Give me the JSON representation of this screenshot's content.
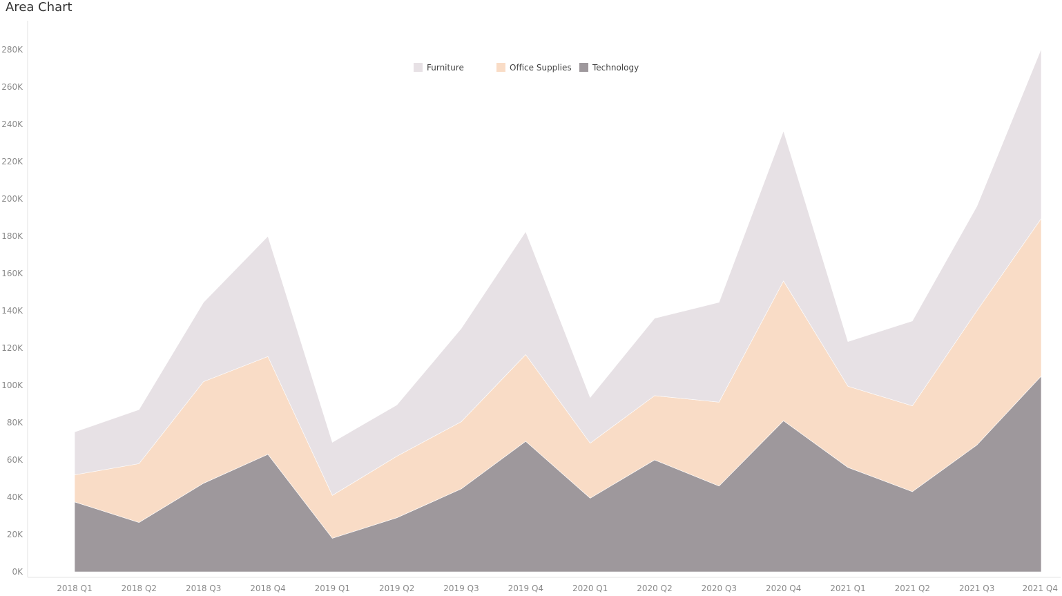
{
  "title": "Area Chart",
  "chart_data": {
    "type": "area",
    "stacked": true,
    "title": "Area Chart",
    "xlabel": "",
    "ylabel": "",
    "ylim": [
      0,
      280000
    ],
    "yticks": [
      0,
      20000,
      40000,
      60000,
      80000,
      100000,
      120000,
      140000,
      160000,
      180000,
      200000,
      220000,
      240000,
      260000,
      280000
    ],
    "ytick_labels": [
      "0K",
      "20K",
      "40K",
      "60K",
      "80K",
      "100K",
      "120K",
      "140K",
      "160K",
      "180K",
      "200K",
      "220K",
      "240K",
      "260K",
      "280K"
    ],
    "categories": [
      "2018 Q1",
      "2018 Q2",
      "2018 Q3",
      "2018 Q4",
      "2019 Q1",
      "2019 Q2",
      "2019 Q3",
      "2019 Q4",
      "2020 Q1",
      "2020 Q2",
      "2020 Q3",
      "2020 Q4",
      "2021 Q1",
      "2021 Q2",
      "2021 Q3",
      "2021 Q4"
    ],
    "legend_position": "top-center",
    "grid": false,
    "series": [
      {
        "name": "Technology",
        "color": "#9e989c",
        "values": [
          37500,
          26500,
          47500,
          63000,
          18000,
          29000,
          44500,
          70000,
          39500,
          60000,
          46000,
          81000,
          56000,
          43000,
          68000,
          105000
        ]
      },
      {
        "name": "Office Supplies",
        "color": "#f9dcc6",
        "values": [
          14500,
          31500,
          54500,
          52500,
          23000,
          33000,
          36000,
          46500,
          29500,
          34500,
          45000,
          75000,
          43500,
          46000,
          72000,
          84500
        ]
      },
      {
        "name": "Furniture",
        "color": "#e7e1e5",
        "values": [
          23000,
          29000,
          42500,
          64500,
          28500,
          27500,
          50000,
          66000,
          24500,
          41500,
          53500,
          80500,
          24000,
          45500,
          56000,
          91000
        ]
      }
    ],
    "legend": [
      {
        "name": "Furniture",
        "color": "#e7e1e5"
      },
      {
        "name": "Office Supplies",
        "color": "#f9dcc6"
      },
      {
        "name": "Technology",
        "color": "#9e989c"
      }
    ]
  }
}
